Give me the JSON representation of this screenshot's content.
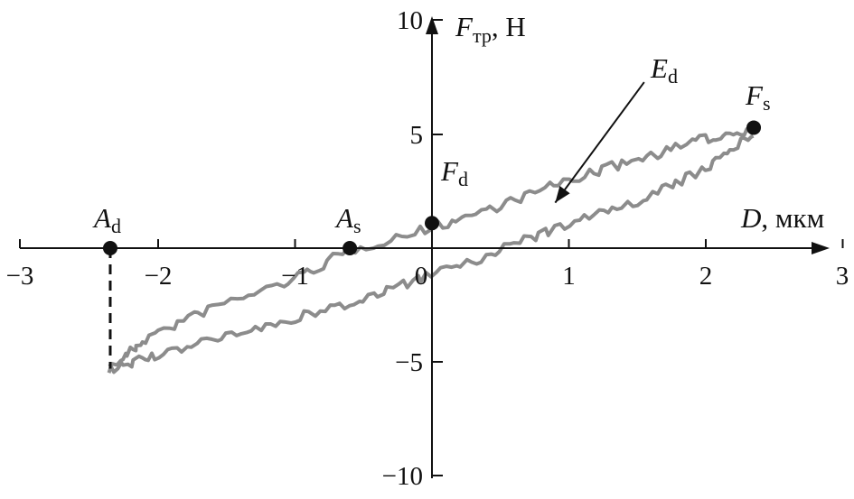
{
  "chart_data": {
    "type": "line",
    "title": "",
    "xlabel": {
      "symbol": "D",
      "unit": "мкм"
    },
    "ylabel": {
      "symbol": "F",
      "subscript": "тр",
      "unit": "Н"
    },
    "xlim": [
      -3,
      3
    ],
    "ylim": [
      -10,
      10
    ],
    "x_ticks": [
      -3,
      -2,
      -1,
      0,
      1,
      2,
      3
    ],
    "x_tick_labels": [
      "−3",
      "−2",
      "−1",
      "0",
      "1",
      "2",
      "3"
    ],
    "y_ticks": [
      10,
      5,
      -5,
      -10
    ],
    "y_tick_labels": [
      "10",
      "5",
      "−5",
      "−10"
    ],
    "grid": false,
    "legend": "none",
    "colors": {
      "loop": "#8c8c8c",
      "axes": "#111111",
      "points": "#111111"
    },
    "series": [
      {
        "kind": "hysteresis-loop",
        "upper_branch": [
          [
            -2.35,
            -5.3
          ],
          [
            -2.1,
            -4.0
          ],
          [
            -1.6,
            -2.6
          ],
          [
            -1.0,
            -1.35
          ],
          [
            -0.6,
            -0.1
          ],
          [
            0.0,
            0.9
          ],
          [
            0.5,
            1.9
          ],
          [
            1.0,
            3.0
          ],
          [
            1.5,
            3.9
          ],
          [
            2.0,
            4.8
          ],
          [
            2.35,
            5.3
          ]
        ],
        "lower_branch": [
          [
            2.35,
            5.1
          ],
          [
            2.0,
            3.5
          ],
          [
            1.5,
            2.0
          ],
          [
            1.0,
            1.1
          ],
          [
            0.5,
            -0.1
          ],
          [
            0.0,
            -1.2
          ],
          [
            -0.5,
            -2.2
          ],
          [
            -1.0,
            -3.1
          ],
          [
            -1.5,
            -3.9
          ],
          [
            -2.0,
            -4.7
          ],
          [
            -2.35,
            -5.3
          ]
        ]
      }
    ],
    "points": [
      {
        "name": "A",
        "sub": "d",
        "x": -2.35,
        "y": 0
      },
      {
        "name": "A",
        "sub": "s",
        "x": -0.6,
        "y": 0
      },
      {
        "name": "F",
        "sub": "d",
        "x": 0.0,
        "y": 1.1
      },
      {
        "name": "F",
        "sub": "s",
        "x": 2.35,
        "y": 5.3
      }
    ],
    "annotations": [
      {
        "name": "E",
        "sub": "d",
        "arrow_from": [
          1.55,
          7.3
        ],
        "arrow_to": [
          0.9,
          2.0
        ]
      }
    ],
    "dashed_drop": {
      "x": -2.35,
      "from_y": 0,
      "to_y": -5.3
    }
  }
}
